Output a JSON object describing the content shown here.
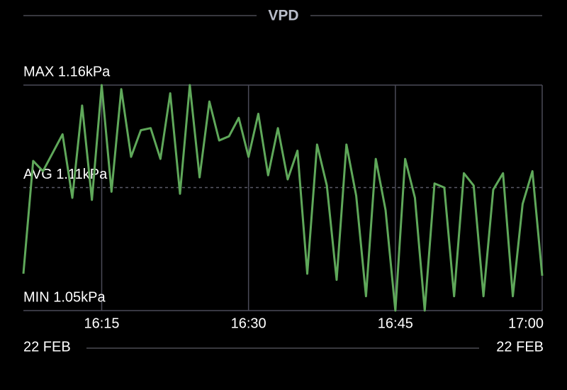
{
  "chart_data": {
    "type": "line",
    "title": "VPD",
    "x": [
      "16:07",
      "16:08",
      "16:09",
      "16:10",
      "16:11",
      "16:12",
      "16:13",
      "16:14",
      "16:15",
      "16:16",
      "16:17",
      "16:18",
      "16:19",
      "16:20",
      "16:21",
      "16:22",
      "16:23",
      "16:24",
      "16:25",
      "16:26",
      "16:27",
      "16:28",
      "16:29",
      "16:30",
      "16:31",
      "16:32",
      "16:33",
      "16:34",
      "16:35",
      "16:36",
      "16:37",
      "16:38",
      "16:39",
      "16:40",
      "16:41",
      "16:42",
      "16:43",
      "16:44",
      "16:45",
      "16:46",
      "16:47",
      "16:48",
      "16:49",
      "16:50",
      "16:51",
      "16:52",
      "16:53",
      "16:54",
      "16:55",
      "16:56",
      "16:57",
      "16:58",
      "16:59",
      "17:00"
    ],
    "series": [
      {
        "name": "VPD",
        "color": "#5fa85a",
        "values": [
          1.068,
          1.123,
          1.118,
          1.127,
          1.136,
          1.105,
          1.15,
          1.104,
          1.16,
          1.108,
          1.158,
          1.125,
          1.138,
          1.139,
          1.124,
          1.156,
          1.107,
          1.16,
          1.115,
          1.152,
          1.133,
          1.135,
          1.144,
          1.125,
          1.146,
          1.116,
          1.139,
          1.114,
          1.128,
          1.068,
          1.131,
          1.111,
          1.065,
          1.131,
          1.106,
          1.057,
          1.124,
          1.099,
          1.05,
          1.124,
          1.105,
          1.05,
          1.112,
          1.11,
          1.057,
          1.117,
          1.111,
          1.057,
          1.109,
          1.117,
          1.057,
          1.102,
          1.118,
          1.067
        ]
      }
    ],
    "xlim": [
      "16:07",
      "17:00"
    ],
    "xticks": [
      "16:15",
      "16:30",
      "16:45",
      "17:00"
    ],
    "ylim": [
      1.05,
      1.16
    ],
    "reference_lines": [
      {
        "label": "MAX 1.16kPa",
        "value": 1.16
      },
      {
        "label": "AVG 1.11kPa",
        "value": 1.11
      },
      {
        "label": "MIN 1.05kPa",
        "value": 1.05
      }
    ],
    "date_start": "22 FEB",
    "date_end": "22 FEB",
    "grid": true
  }
}
